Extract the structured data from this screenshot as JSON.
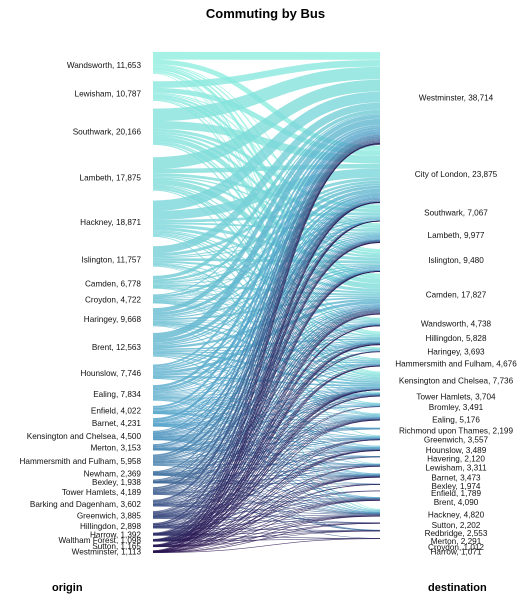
{
  "title": "Commuting by Bus",
  "origin_label": "origin",
  "destination_label": "destination",
  "colors": {
    "light": "#8eeee0",
    "mid": "#4f9fc8",
    "dark": "#2a1450"
  },
  "chart_data": {
    "type": "sankey",
    "origins": [
      {
        "name": "Wandsworth",
        "value": 11653,
        "label": "Wandsworth, 11,653"
      },
      {
        "name": "Lewisham",
        "value": 10787,
        "label": "Lewisham, 10,787"
      },
      {
        "name": "Southwark",
        "value": 20166,
        "label": "Southwark, 20,166"
      },
      {
        "name": "Lambeth",
        "value": 17875,
        "label": "Lambeth, 17,875"
      },
      {
        "name": "Hackney",
        "value": 18871,
        "label": "Hackney, 18,871"
      },
      {
        "name": "Islington",
        "value": 11757,
        "label": "Islington, 11,757"
      },
      {
        "name": "Camden",
        "value": 6778,
        "label": "Camden, 6,778"
      },
      {
        "name": "Croydon",
        "value": 4722,
        "label": "Croydon, 4,722"
      },
      {
        "name": "Haringey",
        "value": 9668,
        "label": "Haringey, 9,668"
      },
      {
        "name": "Brent",
        "value": 12563,
        "label": "Brent, 12,563"
      },
      {
        "name": "Hounslow",
        "value": 7746,
        "label": "Hounslow, 7,746"
      },
      {
        "name": "Ealing",
        "value": 7834,
        "label": "Ealing, 7,834"
      },
      {
        "name": "Enfield",
        "value": 4022,
        "label": "Enfield, 4,022"
      },
      {
        "name": "Barnet",
        "value": 4231,
        "label": "Barnet, 4,231"
      },
      {
        "name": "Kensington and Chelsea",
        "value": 4500,
        "label": "Kensington and Chelsea, 4,500"
      },
      {
        "name": "Merton",
        "value": 3153,
        "label": "Merton, 3,153"
      },
      {
        "name": "Hammersmith and Fulham",
        "value": 5958,
        "label": "Hammersmith and Fulham, 5,958"
      },
      {
        "name": "Newham",
        "value": 2369,
        "label": "Newham, 2,369"
      },
      {
        "name": "Bexley",
        "value": 1938,
        "label": "Bexley, 1,938"
      },
      {
        "name": "Tower Hamlets",
        "value": 4189,
        "label": "Tower Hamlets, 4,189"
      },
      {
        "name": "Barking and Dagenham",
        "value": 3602,
        "label": "Barking and Dagenham, 3,602"
      },
      {
        "name": "Greenwich",
        "value": 3885,
        "label": "Greenwich, 3,885"
      },
      {
        "name": "Hillingdon",
        "value": 2898,
        "label": "Hillingdon, 2,898"
      },
      {
        "name": "Harrow",
        "value": 1392,
        "label": "Harrow, 1,392"
      },
      {
        "name": "Waltham Forest",
        "value": 1098,
        "label": "Waltham Forest, 1,098"
      },
      {
        "name": "Sutton",
        "value": 1165,
        "label": "Sutton, 1,165"
      },
      {
        "name": "Westminster",
        "value": 1113,
        "label": "Westminster, 1,113"
      }
    ],
    "destinations": [
      {
        "name": "Westminster",
        "value": 38714,
        "label": "Westminster, 38,714"
      },
      {
        "name": "City of London",
        "value": 23875,
        "label": "City of London, 23,875"
      },
      {
        "name": "Southwark",
        "value": 7067,
        "label": "Southwark, 7,067"
      },
      {
        "name": "Lambeth",
        "value": 9977,
        "label": "Lambeth, 9,977"
      },
      {
        "name": "Islington",
        "value": 9480,
        "label": "Islington, 9,480"
      },
      {
        "name": "Camden",
        "value": 17827,
        "label": "Camden, 17,827"
      },
      {
        "name": "Wandsworth",
        "value": 4738,
        "label": "Wandsworth, 4,738"
      },
      {
        "name": "Hillingdon",
        "value": 5828,
        "label": "Hillingdon, 5,828"
      },
      {
        "name": "Haringey",
        "value": 3693,
        "label": "Haringey, 3,693"
      },
      {
        "name": "Hammersmith and Fulham",
        "value": 4676,
        "label": "Hammersmith and Fulham, 4,676"
      },
      {
        "name": "Kensington and Chelsea",
        "value": 7736,
        "label": "Kensington and Chelsea, 7,736"
      },
      {
        "name": "Tower Hamlets",
        "value": 3704,
        "label": "Tower Hamlets, 3,704"
      },
      {
        "name": "Bromley",
        "value": 3491,
        "label": "Bromley, 3,491"
      },
      {
        "name": "Ealing",
        "value": 5176,
        "label": "Ealing, 5,176"
      },
      {
        "name": "Richmond upon Thames",
        "value": 2199,
        "label": "Richmond upon Thames, 2,199"
      },
      {
        "name": "Greenwich",
        "value": 3557,
        "label": "Greenwich, 3,557"
      },
      {
        "name": "Hounslow",
        "value": 3489,
        "label": "Hounslow, 3,489"
      },
      {
        "name": "Havering",
        "value": 2120,
        "label": "Havering, 2,120"
      },
      {
        "name": "Lewisham",
        "value": 3311,
        "label": "Lewisham, 3,311"
      },
      {
        "name": "Barnet",
        "value": 3473,
        "label": "Barnet, 3,473"
      },
      {
        "name": "Bexley",
        "value": 1974,
        "label": "Bexley, 1,974"
      },
      {
        "name": "Enfield",
        "value": 1789,
        "label": "Enfield, 1,789"
      },
      {
        "name": "Brent",
        "value": 4090,
        "label": "Brent, 4,090"
      },
      {
        "name": "Hackney",
        "value": 4820,
        "label": "Hackney, 4,820"
      },
      {
        "name": "Sutton",
        "value": 2202,
        "label": "Sutton, 2,202"
      },
      {
        "name": "Redbridge",
        "value": 2553,
        "label": "Redbridge, 2,553"
      },
      {
        "name": "Merton",
        "value": 2291,
        "label": "Merton, 2,291"
      },
      {
        "name": "Croydon",
        "value": 1012,
        "label": "Croydon, 1,012"
      },
      {
        "name": "Harrow",
        "value": 1071,
        "label": "Harrow, 1,071"
      }
    ]
  }
}
